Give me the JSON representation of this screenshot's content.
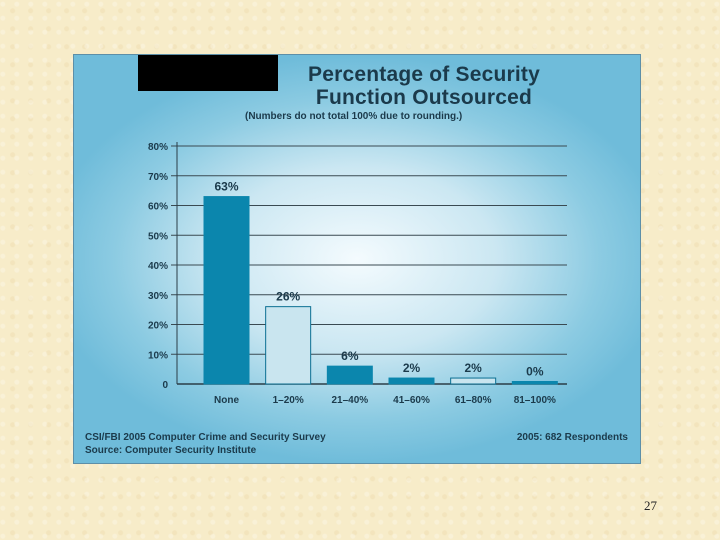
{
  "slide": {
    "page_number": "27"
  },
  "chart_title": "Percentage of Security\nFunction Outsourced",
  "chart_subtitle": "(Numbers do not total 100% due to rounding.)",
  "source": {
    "survey": "CSI/FBI 2005 Computer Crime and Security Survey",
    "source_line": "Source: Computer Security Institute",
    "respondents": "2005: 682 Respondents"
  },
  "colors": {
    "dark_bar": "#0b86ad",
    "light_bar": "#c9e5ef",
    "light_bar_border": "#0b6f92",
    "gridline": "#3a4a52",
    "axis": "#2a3d47",
    "text": "#1b3a4b"
  },
  "chart_data": {
    "type": "bar",
    "title": "Percentage of Security Function Outsourced",
    "subtitle": "(Numbers do not total 100% due to rounding.)",
    "categories": [
      "None",
      "1–20%",
      "21–40%",
      "41–60%",
      "61–80%",
      "81–100%"
    ],
    "values": [
      63,
      26,
      6,
      2,
      2,
      0
    ],
    "value_labels": [
      "63%",
      "26%",
      "6%",
      "2%",
      "2%",
      "0%"
    ],
    "bar_styles": [
      "dark",
      "light",
      "dark",
      "dark",
      "light",
      "dark"
    ],
    "ylim": [
      0,
      80
    ],
    "yticks": [
      0,
      10,
      20,
      30,
      40,
      50,
      60,
      70,
      80
    ],
    "ytick_labels": [
      "0",
      "10%",
      "20%",
      "30%",
      "40%",
      "50%",
      "60%",
      "70%",
      "80%"
    ],
    "grid": true,
    "xlabel": "",
    "ylabel": ""
  }
}
